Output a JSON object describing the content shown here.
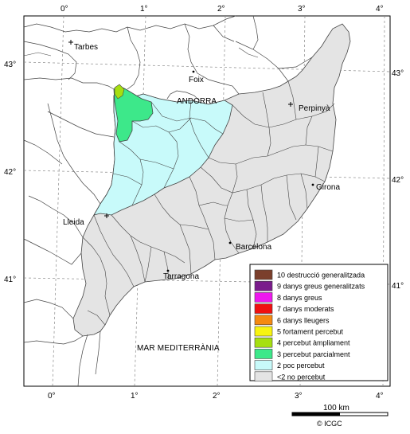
{
  "map": {
    "top_longitudes": [
      "0°",
      "1°",
      "2°",
      "3°",
      "4°"
    ],
    "bottom_longitudes": [
      "0°",
      "1°",
      "2°",
      "3°",
      "4°"
    ],
    "left_latitudes": [
      "43°",
      "42°",
      "41°"
    ],
    "right_latitudes": [
      "43°",
      "42°",
      "41°"
    ],
    "places": {
      "tarbes": "Tarbes",
      "foix": "Foix",
      "andorra": "ANDORRA",
      "perpinya": "Perpinyà",
      "girona": "Girona",
      "lleida": "Lleida",
      "barcelona": "Barcelona",
      "tarragona": "Tarragona",
      "sea": "MAR MEDITERRÀNIA"
    },
    "scale_label": "100 km",
    "copyright": "© ICGC"
  },
  "legend": {
    "items": [
      {
        "label": "10 destrucció generalitzada",
        "color": "#7b3f2c"
      },
      {
        "label": "9 danys greus generalitzats",
        "color": "#7a1c8c"
      },
      {
        "label": "8 danys greus",
        "color": "#ee18ee"
      },
      {
        "label": "7 danys moderats",
        "color": "#f01010"
      },
      {
        "label": "6 danys lleugers",
        "color": "#f58a10"
      },
      {
        "label": "5 fortament percebut",
        "color": "#f8f410"
      },
      {
        "label": "4 percebut àmpliament",
        "color": "#a6df10"
      },
      {
        "label": "3 percebut parcialment",
        "color": "#3de88a"
      },
      {
        "label": "2 poc percebut",
        "color": "#c8fafa"
      },
      {
        "label": "<2 no percebut",
        "color": "#e4e4e4"
      }
    ]
  }
}
